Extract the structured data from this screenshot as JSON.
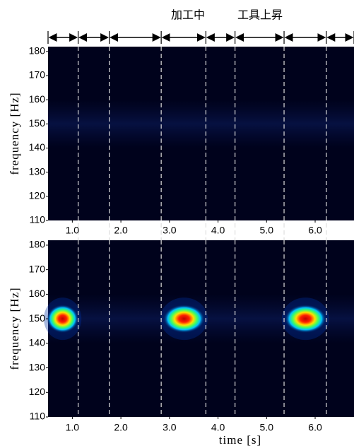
{
  "annotations": [
    "加工中",
    "工具上昇"
  ],
  "chart_data": [
    {
      "type": "heatmap",
      "y_label": "frequency [Hz]",
      "xlim": [
        0.5,
        6.8
      ],
      "ylim": [
        110,
        182
      ],
      "xticks": [
        {
          "value": 1,
          "label": "1.0"
        },
        {
          "value": 2,
          "label": "2.0"
        },
        {
          "value": 3,
          "label": "3.0"
        },
        {
          "value": 4,
          "label": "4.0"
        },
        {
          "value": 5,
          "label": "5.0"
        },
        {
          "value": 6,
          "label": "6.0"
        }
      ],
      "yticks": [
        110,
        120,
        130,
        140,
        150,
        160,
        170,
        180
      ],
      "boundaries": [
        1.12,
        1.76,
        2.83,
        3.75,
        4.35,
        5.36,
        6.23
      ],
      "bursts": []
    },
    {
      "type": "heatmap",
      "y_label": "frequency [Hz]",
      "x_label": "time [s]",
      "xlim": [
        0.5,
        6.8
      ],
      "ylim": [
        110,
        182
      ],
      "xticks": [
        {
          "value": 1,
          "label": "1.0"
        },
        {
          "value": 2,
          "label": "2.0"
        },
        {
          "value": 3,
          "label": "3.0"
        },
        {
          "value": 4,
          "label": "4.0"
        },
        {
          "value": 5,
          "label": "5.0"
        },
        {
          "value": 6,
          "label": "6.0"
        }
      ],
      "yticks": [
        110,
        120,
        130,
        140,
        150,
        160,
        170,
        180
      ],
      "boundaries": [
        1.12,
        1.76,
        2.83,
        3.75,
        4.35,
        5.36,
        6.23
      ],
      "bursts": [
        {
          "start": 0.5,
          "end": 1.1,
          "frequency": 150
        },
        {
          "start": 2.9,
          "end": 3.7,
          "frequency": 150
        },
        {
          "start": 5.4,
          "end": 6.2,
          "frequency": 150
        }
      ]
    }
  ]
}
